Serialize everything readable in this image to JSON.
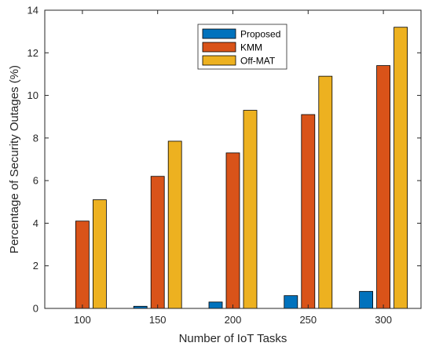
{
  "chart_data": {
    "type": "bar",
    "title": "",
    "xlabel": "Number of IoT Tasks",
    "ylabel": "Percentage of Security Outages (%)",
    "categories": [
      "100",
      "150",
      "200",
      "250",
      "300"
    ],
    "ylim": [
      0,
      14
    ],
    "yticks": [
      0,
      2,
      4,
      6,
      8,
      10,
      12,
      14
    ],
    "grid": false,
    "legend_position": "top-center",
    "series": [
      {
        "name": "Proposed",
        "color": "#0072BD",
        "values": [
          0.0,
          0.1,
          0.3,
          0.6,
          0.8
        ]
      },
      {
        "name": "KMM",
        "color": "#D95319",
        "values": [
          4.1,
          6.2,
          7.3,
          9.1,
          11.4
        ]
      },
      {
        "name": "Off-MAT",
        "color": "#EDB120",
        "values": [
          5.1,
          7.85,
          9.3,
          10.9,
          13.2
        ]
      }
    ]
  }
}
